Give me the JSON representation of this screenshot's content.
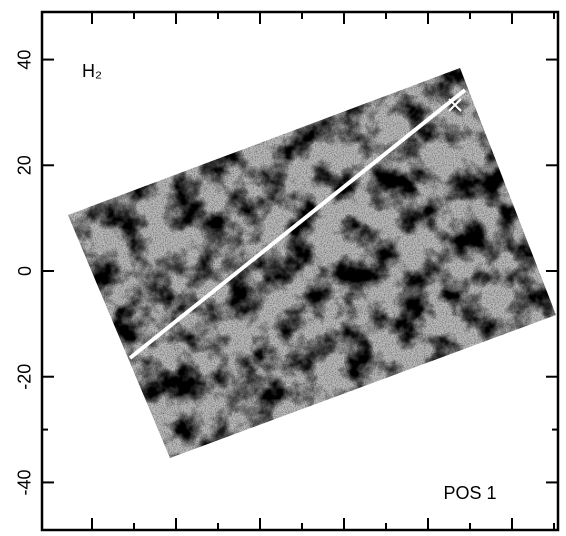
{
  "chart_data": {
    "type": "image",
    "label": "H₂",
    "annotation": "POS 1",
    "ylim": [
      -49,
      49
    ],
    "yticks": [
      -40,
      -20,
      0,
      20,
      40
    ]
  }
}
